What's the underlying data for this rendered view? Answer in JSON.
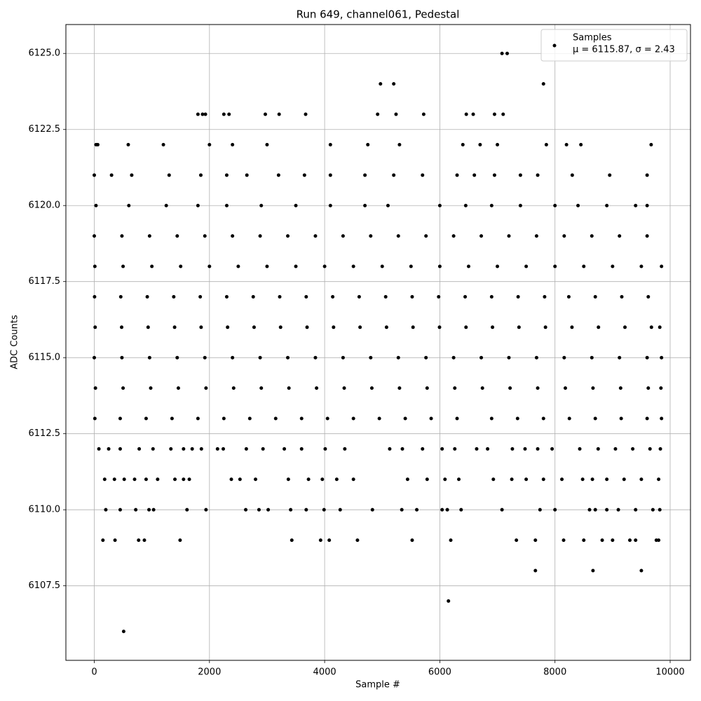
{
  "chart_data": {
    "type": "scatter",
    "title": "Run 649, channel061, Pedestal",
    "x_label": "Sample #",
    "y_label": "ADC Counts",
    "annotation": "μ = 6115.87, σ = 2.43",
    "xlim": [
      -493,
      10353
    ],
    "ylim": [
      6105.05,
      6125.95
    ],
    "xticks": [
      0,
      2000,
      4000,
      6000,
      8000,
      10000
    ],
    "yticks": [
      6107.5,
      {
        "value": 6110,
        "label": "6110.0"
      },
      6112.5,
      {
        "value": 6115,
        "label": "6115.0"
      },
      6117.5,
      {
        "value": 6120,
        "label": "6120.0"
      },
      6122.5,
      {
        "value": 6125,
        "label": "6125.0"
      }
    ],
    "grid": true,
    "legend": "upper right",
    "series": [
      {
        "name": "Samples",
        "color": "#000000",
        "x": [
          510,
          6150,
          7660,
          8660,
          9500,
          7080,
          7170,
          7800,
          4970,
          5200,
          1800,
          1880,
          1930,
          2250,
          2340,
          2970,
          3210,
          3670,
          4920,
          5240,
          5720,
          6460,
          6580,
          6950,
          7100,
          30,
          60,
          590,
          1200,
          2000,
          2400,
          3000,
          4100,
          4750,
          5300,
          6400,
          6700,
          7000,
          7850,
          8200,
          8450,
          9670,
          150,
          360,
          770,
          870,
          1490,
          3430,
          3930,
          4080,
          4570,
          5520,
          6190,
          7330,
          7660,
          8150,
          8500,
          8820,
          9000,
          9300,
          9400,
          9760,
          9800,
          200,
          450,
          720,
          950,
          1030,
          1610,
          1940,
          2630,
          2860,
          3020,
          3410,
          3680,
          3990,
          4270,
          4830,
          5340,
          5600,
          6040,
          6130,
          6370,
          7080,
          7740,
          8000,
          8600,
          8700,
          8900,
          9100,
          9400,
          9700,
          9820,
          180,
          350,
          520,
          700,
          900,
          1100,
          1400,
          1550,
          1650,
          2380,
          2530,
          2800,
          3370,
          3720,
          3960,
          4210,
          4500,
          5440,
          5780,
          6090,
          6330,
          6930,
          7250,
          7500,
          7800,
          8120,
          8480,
          8650,
          8900,
          9200,
          9500,
          9800,
          80,
          250,
          450,
          780,
          1020,
          1330,
          1550,
          1700,
          1860,
          2140,
          2240,
          2640,
          2930,
          3300,
          3600,
          4010,
          4350,
          5130,
          5350,
          5700,
          6040,
          6260,
          6640,
          6830,
          7260,
          7480,
          7700,
          7950,
          8430,
          8750,
          9050,
          9350,
          9650,
          9830,
          10,
          450,
          900,
          1350,
          1800,
          2250,
          2700,
          3150,
          3600,
          4050,
          4500,
          4950,
          5400,
          5850,
          6300,
          6900,
          7350,
          7800,
          8250,
          8700,
          9150,
          9600,
          9850,
          20,
          500,
          980,
          1460,
          1940,
          2420,
          2900,
          3380,
          3860,
          4340,
          4820,
          5300,
          5780,
          6260,
          6740,
          7220,
          7700,
          8180,
          8660,
          9140,
          9620,
          9840,
          0,
          480,
          960,
          1440,
          1920,
          2400,
          2880,
          3360,
          3840,
          4320,
          4800,
          5280,
          5760,
          6240,
          6720,
          7200,
          7680,
          8160,
          8640,
          9120,
          9600,
          9850,
          15,
          475,
          935,
          1395,
          1855,
          2315,
          2775,
          3235,
          3695,
          4155,
          4615,
          5075,
          5535,
          5995,
          6455,
          6915,
          7375,
          7835,
          8295,
          8755,
          9215,
          9675,
          9820,
          5,
          460,
          920,
          1380,
          1840,
          2300,
          2760,
          3220,
          3680,
          4140,
          4600,
          5060,
          5520,
          5980,
          6440,
          6900,
          7360,
          7820,
          8240,
          8700,
          9160,
          9620,
          10,
          500,
          1000,
          1500,
          2000,
          2500,
          3000,
          3500,
          4000,
          4500,
          5000,
          5500,
          6000,
          6500,
          7000,
          7500,
          8000,
          8500,
          9000,
          9500,
          9850,
          0,
          480,
          960,
          1440,
          1920,
          2400,
          2880,
          3360,
          3840,
          4320,
          4800,
          5280,
          5760,
          6240,
          6720,
          7200,
          7680,
          8160,
          8640,
          9120,
          9600,
          30,
          600,
          1250,
          1800,
          2300,
          2900,
          3500,
          4100,
          4700,
          5100,
          6000,
          6450,
          6900,
          7400,
          8000,
          8400,
          8900,
          9400,
          9600,
          0,
          300,
          650,
          1300,
          1850,
          2300,
          2650,
          3200,
          3650,
          4100,
          4700,
          5200,
          5700,
          6300,
          6600,
          6950,
          7400,
          7700,
          8300,
          8950,
          9600
        ],
        "values": [
          6106,
          6107,
          6108,
          6108,
          6108,
          6125,
          6125,
          6124,
          6124,
          6124,
          6123,
          6123,
          6123,
          6123,
          6123,
          6123,
          6123,
          6123,
          6123,
          6123,
          6123,
          6123,
          6123,
          6123,
          6123,
          6122,
          6122,
          6122,
          6122,
          6122,
          6122,
          6122,
          6122,
          6122,
          6122,
          6122,
          6122,
          6122,
          6122,
          6122,
          6122,
          6122,
          6109,
          6109,
          6109,
          6109,
          6109,
          6109,
          6109,
          6109,
          6109,
          6109,
          6109,
          6109,
          6109,
          6109,
          6109,
          6109,
          6109,
          6109,
          6109,
          6109,
          6109,
          6110,
          6110,
          6110,
          6110,
          6110,
          6110,
          6110,
          6110,
          6110,
          6110,
          6110,
          6110,
          6110,
          6110,
          6110,
          6110,
          6110,
          6110,
          6110,
          6110,
          6110,
          6110,
          6110,
          6110,
          6110,
          6110,
          6110,
          6110,
          6110,
          6110,
          6111,
          6111,
          6111,
          6111,
          6111,
          6111,
          6111,
          6111,
          6111,
          6111,
          6111,
          6111,
          6111,
          6111,
          6111,
          6111,
          6111,
          6111,
          6111,
          6111,
          6111,
          6111,
          6111,
          6111,
          6111,
          6111,
          6111,
          6111,
          6111,
          6111,
          6111,
          6111,
          6112,
          6112,
          6112,
          6112,
          6112,
          6112,
          6112,
          6112,
          6112,
          6112,
          6112,
          6112,
          6112,
          6112,
          6112,
          6112,
          6112,
          6112,
          6112,
          6112,
          6112,
          6112,
          6112,
          6112,
          6112,
          6112,
          6112,
          6112,
          6112,
          6112,
          6112,
          6112,
          6112,
          6112,
          6113,
          6113,
          6113,
          6113,
          6113,
          6113,
          6113,
          6113,
          6113,
          6113,
          6113,
          6113,
          6113,
          6113,
          6113,
          6113,
          6113,
          6113,
          6113,
          6113,
          6113,
          6113,
          6113,
          6114,
          6114,
          6114,
          6114,
          6114,
          6114,
          6114,
          6114,
          6114,
          6114,
          6114,
          6114,
          6114,
          6114,
          6114,
          6114,
          6114,
          6114,
          6114,
          6114,
          6114,
          6114,
          6115,
          6115,
          6115,
          6115,
          6115,
          6115,
          6115,
          6115,
          6115,
          6115,
          6115,
          6115,
          6115,
          6115,
          6115,
          6115,
          6115,
          6115,
          6115,
          6115,
          6115,
          6115,
          6116,
          6116,
          6116,
          6116,
          6116,
          6116,
          6116,
          6116,
          6116,
          6116,
          6116,
          6116,
          6116,
          6116,
          6116,
          6116,
          6116,
          6116,
          6116,
          6116,
          6116,
          6116,
          6116,
          6117,
          6117,
          6117,
          6117,
          6117,
          6117,
          6117,
          6117,
          6117,
          6117,
          6117,
          6117,
          6117,
          6117,
          6117,
          6117,
          6117,
          6117,
          6117,
          6117,
          6117,
          6117,
          6118,
          6118,
          6118,
          6118,
          6118,
          6118,
          6118,
          6118,
          6118,
          6118,
          6118,
          6118,
          6118,
          6118,
          6118,
          6118,
          6118,
          6118,
          6118,
          6118,
          6118,
          6119,
          6119,
          6119,
          6119,
          6119,
          6119,
          6119,
          6119,
          6119,
          6119,
          6119,
          6119,
          6119,
          6119,
          6119,
          6119,
          6119,
          6119,
          6119,
          6119,
          6119,
          6120,
          6120,
          6120,
          6120,
          6120,
          6120,
          6120,
          6120,
          6120,
          6120,
          6120,
          6120,
          6120,
          6120,
          6120,
          6120,
          6120,
          6120,
          6120,
          6121,
          6121,
          6121,
          6121,
          6121,
          6121,
          6121,
          6121,
          6121,
          6121,
          6121,
          6121,
          6121,
          6121,
          6121,
          6121,
          6121,
          6121,
          6121,
          6121,
          6121
        ]
      }
    ]
  }
}
